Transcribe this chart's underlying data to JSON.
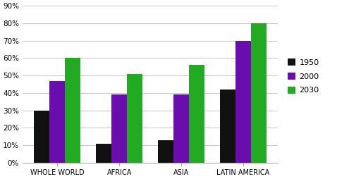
{
  "categories": [
    "WHOLE WORLD",
    "AFRICA",
    "ASIA",
    "LATIN AMERICA"
  ],
  "series": {
    "1950": [
      30,
      11,
      13,
      42
    ],
    "2000": [
      47,
      39,
      39,
      70
    ],
    "2030": [
      60,
      51,
      56,
      80
    ]
  },
  "colors": {
    "1950": "#111111",
    "2000": "#6a0dad",
    "2030": "#22aa22"
  },
  "ylim": [
    0,
    90
  ],
  "yticks": [
    0,
    10,
    20,
    30,
    40,
    50,
    60,
    70,
    80,
    90
  ],
  "ytick_labels": [
    "0%",
    "10%",
    "20%",
    "30%",
    "40%",
    "50%",
    "60%",
    "70%",
    "80%",
    "90%"
  ],
  "bar_width": 0.25,
  "legend_labels": [
    "1950",
    "2000",
    "2030"
  ],
  "background_color": "#ffffff",
  "grid_color": "#bbbbbb",
  "fig_width": 5.12,
  "fig_height": 2.54
}
